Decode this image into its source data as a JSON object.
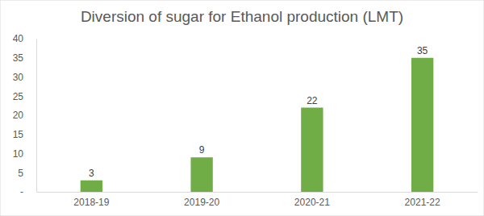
{
  "chart_data": {
    "type": "bar",
    "title": "Diversion of sugar for Ethanol production (LMT)",
    "categories": [
      "2018-19",
      "2019-20",
      "2020-21",
      "2021-22"
    ],
    "values": [
      3,
      9,
      22,
      35
    ],
    "color": "#70ad47",
    "ylim": [
      0,
      40
    ],
    "yticks": [
      {
        "value": 0,
        "label": "-"
      },
      5,
      10,
      15,
      20,
      25,
      30,
      35,
      40
    ],
    "grid": false,
    "data_labels": true
  }
}
